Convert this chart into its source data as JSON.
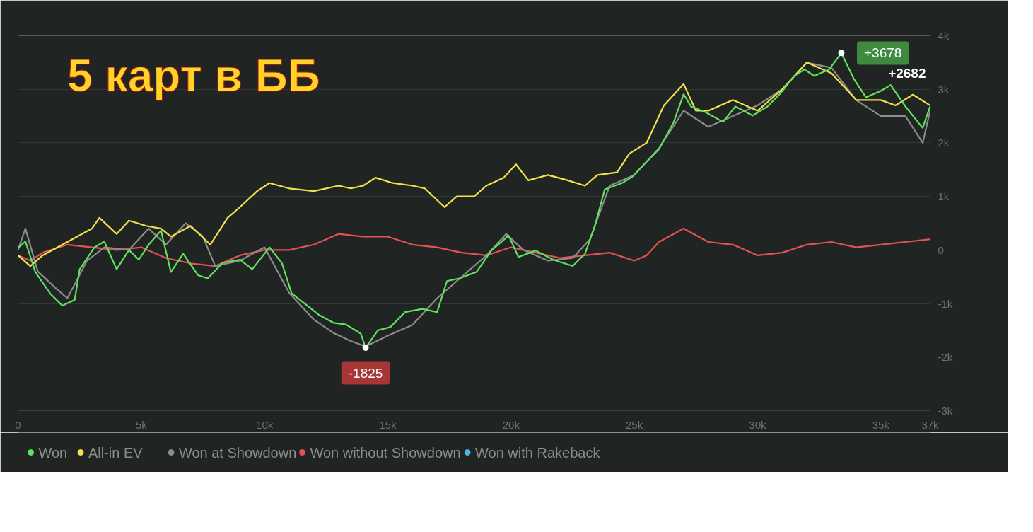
{
  "chart_data": {
    "type": "line",
    "title": "5 карт в ББ",
    "xlim": [
      0,
      37000
    ],
    "ylim": [
      -3000,
      4000
    ],
    "xticks": [
      0,
      {
        "value": 5000,
        "label": "5k"
      },
      {
        "value": 10000,
        "label": "10k"
      },
      {
        "value": 15000,
        "label": "15k"
      },
      {
        "value": 20000,
        "label": "20k"
      },
      {
        "value": 25000,
        "label": "25k"
      },
      {
        "value": 30000,
        "label": "30k"
      },
      {
        "value": 35000,
        "label": "35k"
      },
      {
        "value": 37000,
        "label": "37k"
      }
    ],
    "yticks": [
      {
        "value": -3000,
        "label": "-3k"
      },
      {
        "value": -2000,
        "label": "-2k"
      },
      {
        "value": -1000,
        "label": "-1k"
      },
      0,
      {
        "value": 1000,
        "label": "1k"
      },
      {
        "value": 2000,
        "label": "2k"
      },
      {
        "value": 3000,
        "label": "3k"
      },
      {
        "value": 4000,
        "label": "4k"
      }
    ],
    "grid": "y",
    "legend": "bottom",
    "marker": "none",
    "line_style": "solid",
    "series": [
      {
        "name": "Won",
        "color": "#5fe25f",
        "x": [
          0,
          300,
          700,
          1300,
          1800,
          2300,
          2500,
          3100,
          3500,
          4000,
          4500,
          4900,
          5300,
          5800,
          6200,
          6700,
          7300,
          7700,
          8300,
          9000,
          9500,
          10200,
          10700,
          11100,
          11600,
          12200,
          12800,
          13300,
          13900,
          14100,
          14600,
          15100,
          15700,
          16400,
          17000,
          17400,
          17900,
          18600,
          19200,
          19900,
          20300,
          21000,
          21700,
          22500,
          23000,
          23400,
          23800,
          24500,
          24900,
          25500,
          26000,
          26600,
          27000,
          27300,
          27900,
          28600,
          29100,
          29800,
          30400,
          30900,
          31500,
          31900,
          32300,
          32900,
          33400,
          33900,
          34400,
          35000,
          35400,
          36000,
          36500,
          36700,
          37000
        ],
        "values": [
          40,
          160,
          -410,
          -810,
          -1040,
          -930,
          -360,
          50,
          160,
          -360,
          0,
          -180,
          100,
          360,
          -410,
          -70,
          -470,
          -530,
          -240,
          -180,
          -360,
          50,
          -240,
          -810,
          -990,
          -1210,
          -1360,
          -1390,
          -1560,
          -1825,
          -1500,
          -1440,
          -1160,
          -1100,
          -1160,
          -580,
          -530,
          -410,
          -10,
          270,
          -130,
          -10,
          -180,
          -300,
          -70,
          450,
          1130,
          1250,
          1360,
          1650,
          1880,
          2390,
          2910,
          2680,
          2570,
          2390,
          2680,
          2510,
          2680,
          2910,
          3250,
          3370,
          3250,
          3370,
          3678,
          3200,
          2850,
          2970,
          3080,
          2680,
          2390,
          2280,
          2682
        ]
      },
      {
        "name": "All-in EV",
        "color": "#f2e14c",
        "x": [
          0,
          500,
          1000,
          2000,
          3000,
          3300,
          4000,
          4500,
          5200,
          5800,
          6200,
          7000,
          7800,
          8500,
          9000,
          9700,
          10200,
          11000,
          12000,
          13000,
          13500,
          14000,
          14500,
          15200,
          16000,
          16500,
          17300,
          17800,
          18500,
          19000,
          19700,
          20200,
          20700,
          21500,
          22300,
          23000,
          23500,
          24300,
          24800,
          25500,
          26200,
          27000,
          27500,
          28000,
          29000,
          30000,
          31000,
          32000,
          33000,
          34000,
          35000,
          35600,
          36300,
          37000
        ],
        "values": [
          -100,
          -300,
          -100,
          150,
          400,
          600,
          300,
          550,
          450,
          400,
          250,
          450,
          100,
          600,
          800,
          1100,
          1250,
          1150,
          1100,
          1200,
          1150,
          1200,
          1350,
          1250,
          1200,
          1150,
          800,
          1000,
          1000,
          1200,
          1350,
          1600,
          1300,
          1400,
          1300,
          1200,
          1400,
          1450,
          1800,
          2000,
          2700,
          3100,
          2600,
          2600,
          2800,
          2600,
          3000,
          3500,
          3300,
          2800,
          2800,
          2700,
          2900,
          2700
        ]
      },
      {
        "name": "Won at Showdown",
        "color": "#8c8c8c",
        "x": [
          0,
          300,
          800,
          1500,
          2000,
          2800,
          3500,
          4500,
          5300,
          6000,
          6800,
          7500,
          8000,
          9000,
          10000,
          11000,
          12000,
          12800,
          13500,
          14100,
          15000,
          16000,
          17000,
          18000,
          19000,
          19800,
          20500,
          21500,
          22500,
          23200,
          24000,
          25000,
          26000,
          27000,
          28000,
          29000,
          30000,
          31000,
          32000,
          33000,
          34000,
          35000,
          36000,
          36700,
          37000
        ],
        "values": [
          0,
          400,
          -400,
          -700,
          -900,
          -200,
          50,
          0,
          400,
          100,
          500,
          250,
          -300,
          -200,
          50,
          -800,
          -1300,
          -1550,
          -1700,
          -1800,
          -1600,
          -1400,
          -900,
          -500,
          -100,
          300,
          0,
          -200,
          -150,
          200,
          1200,
          1400,
          1900,
          2600,
          2300,
          2500,
          2700,
          3000,
          3500,
          3400,
          2800,
          2500,
          2500,
          2000,
          2600
        ]
      },
      {
        "name": "Won without Showdown",
        "color": "#e35252",
        "x": [
          0,
          500,
          1000,
          2000,
          3000,
          4000,
          5000,
          6000,
          7000,
          8000,
          9000,
          10000,
          11000,
          12000,
          13000,
          14000,
          15000,
          16000,
          17000,
          18000,
          19000,
          20000,
          21000,
          22000,
          23000,
          24000,
          25000,
          25500,
          26000,
          27000,
          28000,
          29000,
          30000,
          31000,
          32000,
          33000,
          34000,
          35000,
          36000,
          37000
        ],
        "values": [
          -100,
          -200,
          -50,
          100,
          50,
          0,
          50,
          -150,
          -250,
          -300,
          -100,
          0,
          0,
          100,
          300,
          250,
          250,
          100,
          50,
          -50,
          -100,
          50,
          -50,
          -150,
          -100,
          -50,
          -200,
          -100,
          150,
          400,
          150,
          100,
          -100,
          -50,
          100,
          150,
          50,
          100,
          150,
          200
        ]
      },
      {
        "name": "Won with Rakeback",
        "color": "#4fb3e6"
      }
    ],
    "annotations": [
      {
        "text": "+3678",
        "x": 33400,
        "y": 3678
      },
      {
        "text": "-1825",
        "x": 14100,
        "y": -1825
      },
      {
        "text": "+2682",
        "x": 37000,
        "y": 2682
      }
    ]
  }
}
